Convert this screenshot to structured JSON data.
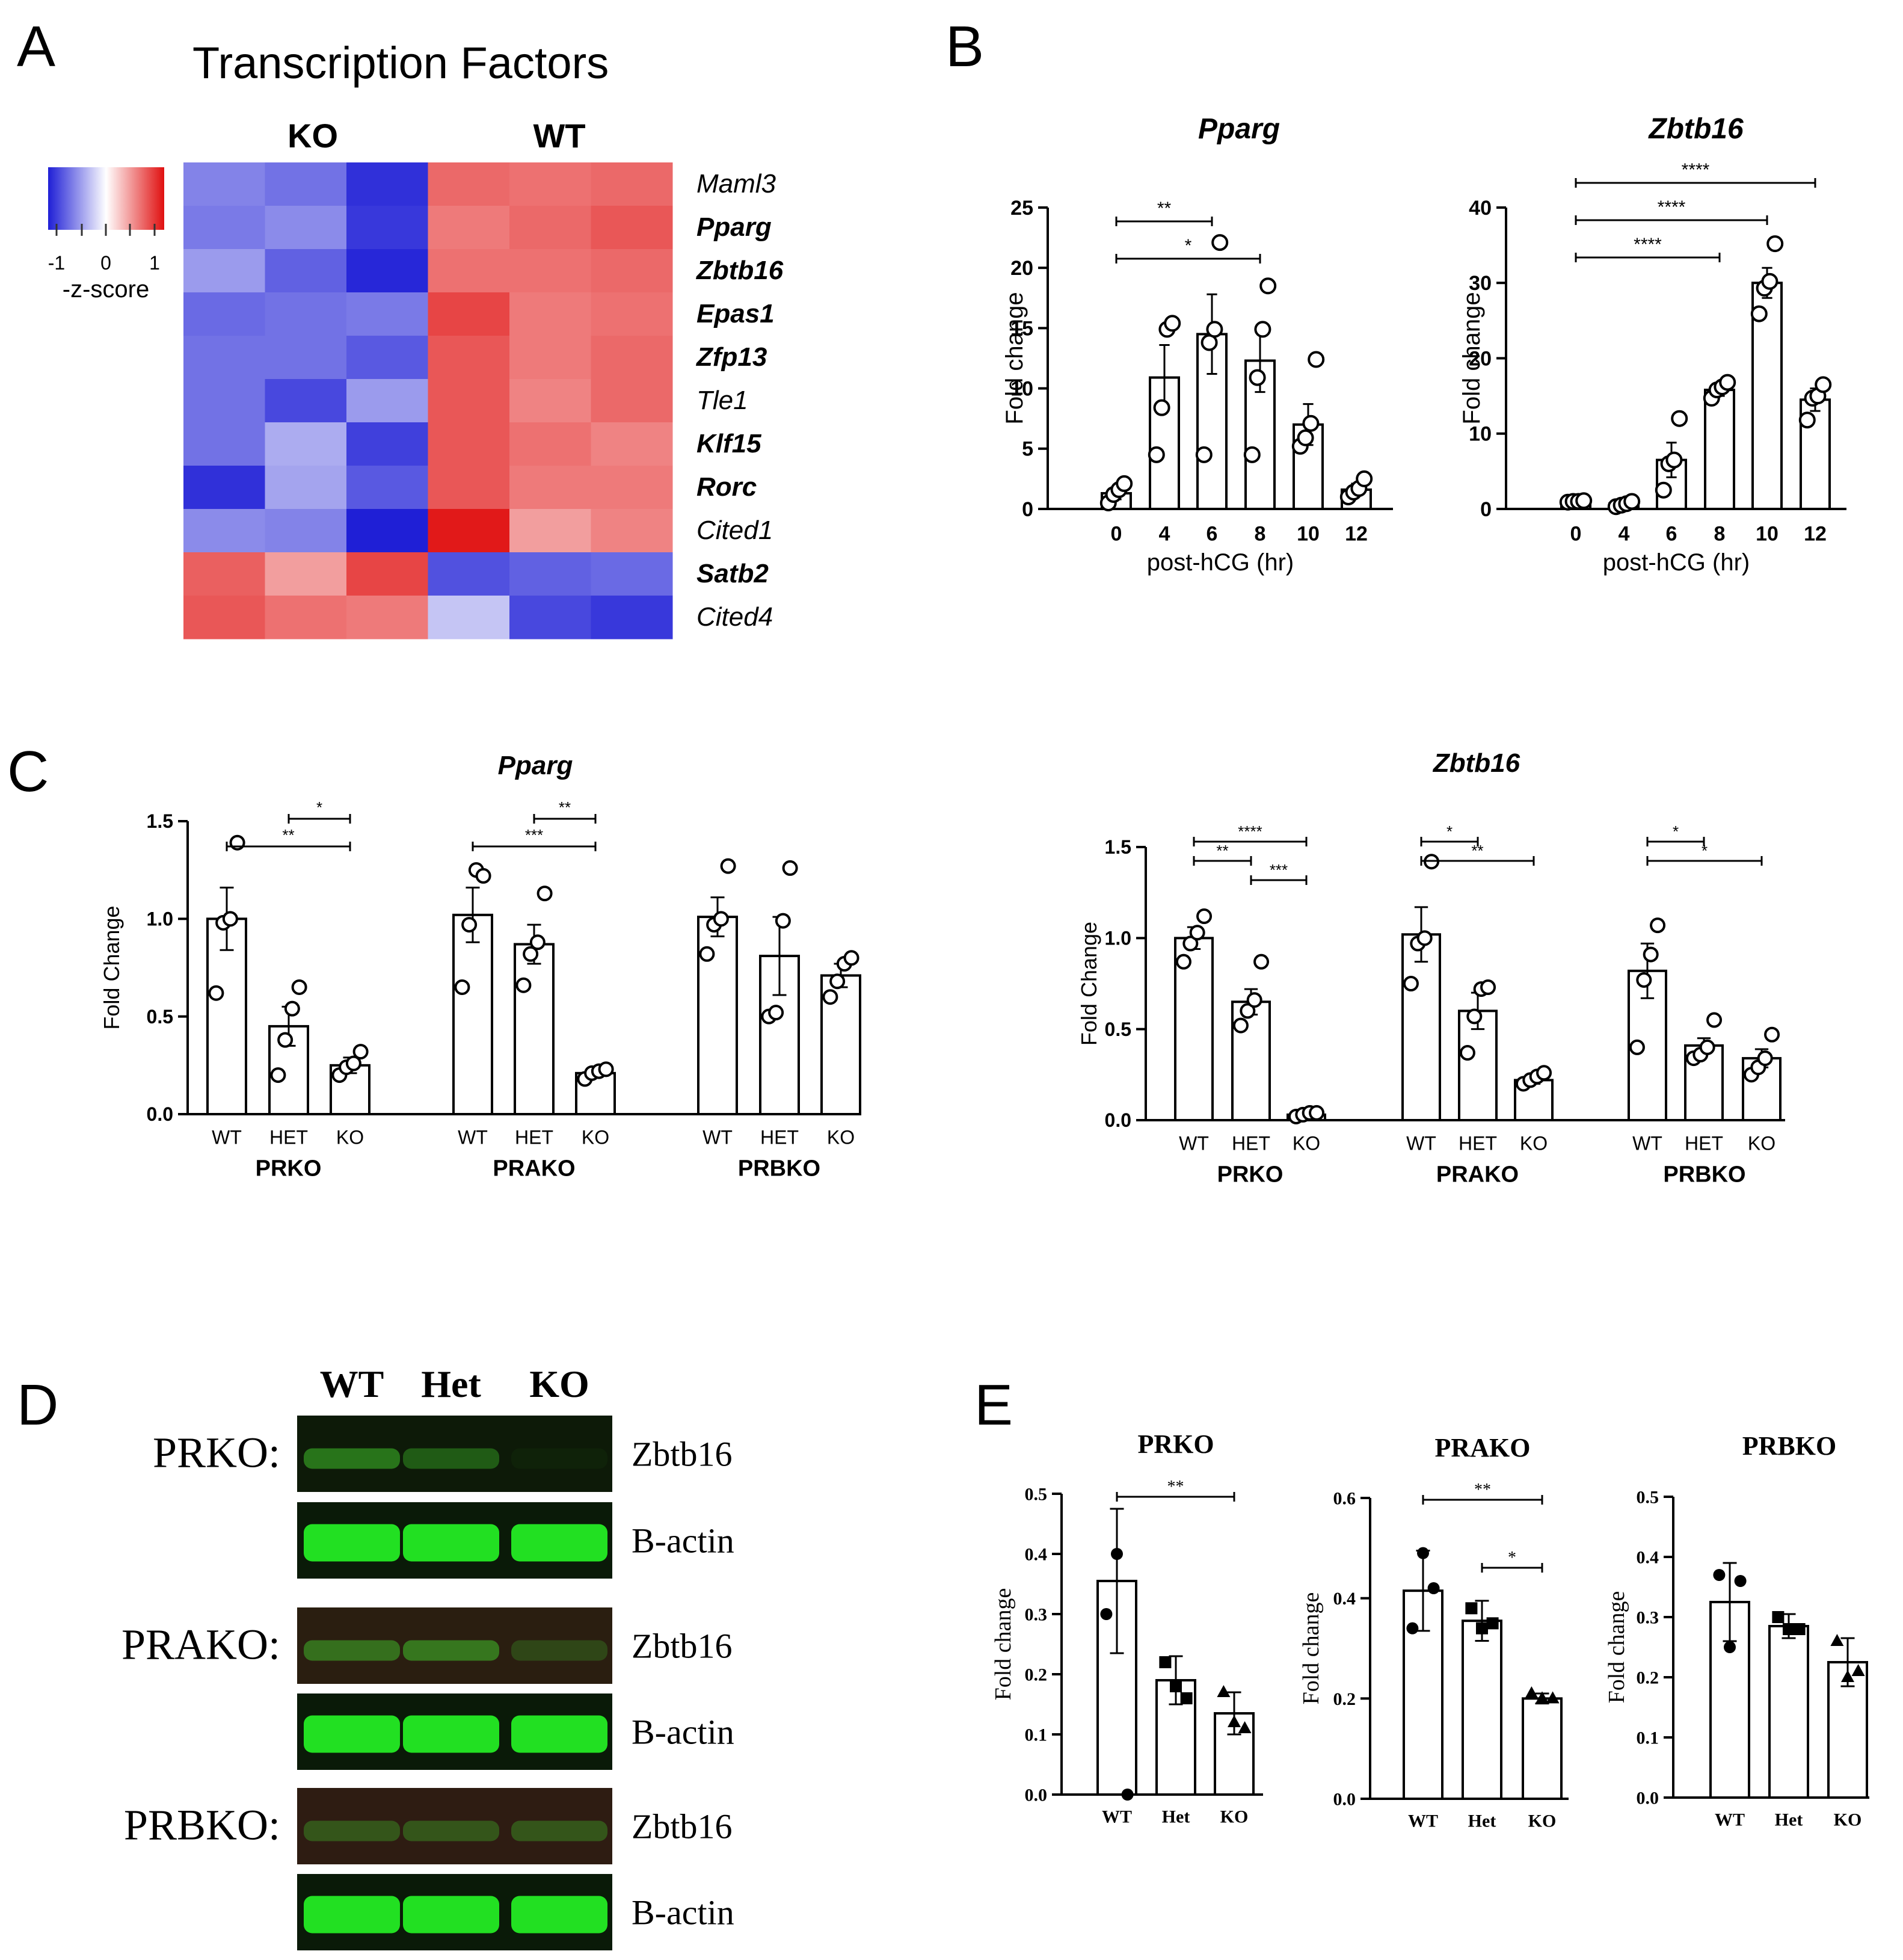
{
  "panel_labels": {
    "A": "A",
    "B": "B",
    "C": "C",
    "D": "D",
    "E": "E"
  },
  "heatmap": {
    "title": "Transcription Factors",
    "group_labels": [
      "KO",
      "WT"
    ],
    "legend": {
      "ticks": [
        "-1",
        "0",
        "1"
      ],
      "label": "-z-score",
      "low_color": "#1f1fd6",
      "mid_color": "#ffffff",
      "high_color": "#e01010"
    },
    "rows": [
      {
        "gene": "Maml3",
        "bold": false,
        "values": [
          -0.75,
          -0.85,
          -1.25,
          0.85,
          0.8,
          0.85
        ]
      },
      {
        "gene": "Pparg",
        "bold": true,
        "values": [
          -0.8,
          -0.7,
          -1.2,
          0.75,
          0.85,
          0.95
        ]
      },
      {
        "gene": "Zbtb16",
        "bold": true,
        "values": [
          -0.6,
          -0.95,
          -1.3,
          0.8,
          0.8,
          0.85
        ]
      },
      {
        "gene": "Epas1",
        "bold": true,
        "values": [
          -0.9,
          -0.85,
          -0.8,
          1.05,
          0.75,
          0.8
        ]
      },
      {
        "gene": "Zfp13",
        "bold": true,
        "values": [
          -0.85,
          -0.85,
          -1.0,
          0.95,
          0.75,
          0.85
        ]
      },
      {
        "gene": "Tle1",
        "bold": false,
        "values": [
          -0.85,
          -1.1,
          -0.6,
          0.95,
          0.7,
          0.85
        ]
      },
      {
        "gene": "Klf15",
        "bold": true,
        "values": [
          -0.85,
          -0.5,
          -1.15,
          0.95,
          0.8,
          0.7
        ]
      },
      {
        "gene": "Rorc",
        "bold": true,
        "values": [
          -1.25,
          -0.55,
          -1.0,
          0.95,
          0.75,
          0.75
        ]
      },
      {
        "gene": "Cited1",
        "bold": false,
        "values": [
          -0.7,
          -0.75,
          -1.35,
          1.3,
          0.55,
          0.7
        ]
      },
      {
        "gene": "Satb2",
        "bold": true,
        "values": [
          0.9,
          0.55,
          1.05,
          -1.05,
          -0.95,
          -0.9
        ]
      },
      {
        "gene": "Cited4",
        "bold": false,
        "values": [
          0.95,
          0.8,
          0.75,
          -0.35,
          -1.1,
          -1.2
        ]
      }
    ]
  },
  "chart_data": [
    {
      "panel": "B",
      "type": "bar",
      "title": "Pparg",
      "xlabel": "post-hCG (hr)",
      "ylabel": "Fold change",
      "categories": [
        "0",
        "4",
        "6",
        "8",
        "10",
        "12"
      ],
      "values": [
        1.3,
        10.9,
        14.5,
        12.3,
        7.0,
        1.6
      ],
      "errors": [
        0.5,
        2.7,
        3.3,
        2.6,
        1.7,
        0.5
      ],
      "points": [
        [
          0.5,
          1.2,
          1.6,
          2.1
        ],
        [
          4.5,
          8.4,
          14.9,
          15.4
        ],
        [
          4.5,
          13.8,
          14.9,
          22.1
        ],
        [
          4.5,
          10.9,
          14.9,
          18.5
        ],
        [
          5.2,
          5.9,
          7.1,
          12.4
        ],
        [
          1.0,
          1.4,
          1.7,
          2.5
        ]
      ],
      "ylim": [
        0,
        25
      ],
      "yticks": [
        0,
        5,
        10,
        15,
        20,
        25
      ],
      "significance": [
        {
          "from": 0,
          "to": 2,
          "label": "**"
        },
        {
          "from": 0,
          "to": 3,
          "label": "*"
        }
      ]
    },
    {
      "panel": "B",
      "type": "bar",
      "title": "Zbtb16",
      "xlabel": "post-hCG (hr)",
      "ylabel": "Fold change",
      "categories": [
        "0",
        "4",
        "6",
        "8",
        "10",
        "12"
      ],
      "values": [
        1.0,
        0.7,
        6.5,
        15.8,
        30.0,
        14.5
      ],
      "errors": [
        0.2,
        0.4,
        2.3,
        0.8,
        2.0,
        1.5
      ],
      "points": [
        [
          0.9,
          1.0,
          1.0,
          1.1
        ],
        [
          0.3,
          0.5,
          0.7,
          1.0
        ],
        [
          2.5,
          6.0,
          6.5,
          12.0
        ],
        [
          14.7,
          15.8,
          16.2,
          16.8
        ],
        [
          25.9,
          29.3,
          30.2,
          35.2
        ],
        [
          11.8,
          14.7,
          15.0,
          16.5
        ]
      ],
      "ylim": [
        0,
        40
      ],
      "yticks": [
        0,
        10,
        20,
        30,
        40
      ],
      "significance": [
        {
          "from": 0,
          "to": 3,
          "label": "****"
        },
        {
          "from": 0,
          "to": 4,
          "label": "****"
        },
        {
          "from": 0,
          "to": 5,
          "label": "****"
        }
      ]
    },
    {
      "panel": "C",
      "type": "bar",
      "title": "Pparg",
      "ylabel": "Fold Change",
      "groups": [
        "PRKO",
        "PRAKO",
        "PRBKO"
      ],
      "categories": [
        "WT",
        "HET",
        "KO"
      ],
      "values": [
        [
          1.0,
          0.45,
          0.25
        ],
        [
          1.02,
          0.87,
          0.21
        ],
        [
          1.01,
          0.81,
          0.71
        ]
      ],
      "errors": [
        [
          0.16,
          0.1,
          0.04
        ],
        [
          0.14,
          0.1,
          0.02
        ],
        [
          0.1,
          0.2,
          0.06
        ]
      ],
      "points": [
        [
          [
            0.62,
            0.98,
            1.0,
            1.39
          ],
          [
            0.2,
            0.38,
            0.54,
            0.65
          ],
          [
            0.2,
            0.24,
            0.26,
            0.32
          ]
        ],
        [
          [
            0.65,
            0.97,
            1.25,
            1.22
          ],
          [
            0.66,
            0.82,
            0.88,
            1.13
          ],
          [
            0.18,
            0.21,
            0.22,
            0.23
          ]
        ],
        [
          [
            0.82,
            0.97,
            1.0,
            1.27
          ],
          [
            0.5,
            0.52,
            0.99,
            1.26
          ],
          [
            0.6,
            0.68,
            0.77,
            0.8
          ]
        ]
      ],
      "ylim": [
        0,
        1.5
      ],
      "yticks": [
        "0.0",
        "0.5",
        "1.0",
        "1.5"
      ],
      "significance": [
        [
          {
            "from": 0,
            "to": 2,
            "label": "**"
          },
          {
            "from": 1,
            "to": 2,
            "label": "*"
          }
        ],
        [
          {
            "from": 0,
            "to": 2,
            "label": "***"
          },
          {
            "from": 1,
            "to": 2,
            "label": "**"
          }
        ],
        []
      ]
    },
    {
      "panel": "C",
      "type": "bar",
      "title": "Zbtb16",
      "ylabel": "Fold Change",
      "groups": [
        "PRKO",
        "PRAKO",
        "PRBKO"
      ],
      "categories": [
        "WT",
        "HET",
        "KO"
      ],
      "values": [
        [
          1.0,
          0.65,
          0.03
        ],
        [
          1.02,
          0.6,
          0.22
        ],
        [
          0.82,
          0.41,
          0.34
        ]
      ],
      "errors": [
        [
          0.06,
          0.07,
          0.005
        ],
        [
          0.15,
          0.1,
          0.02
        ],
        [
          0.15,
          0.04,
          0.05
        ]
      ],
      "points": [
        [
          [
            0.87,
            0.97,
            1.03,
            1.12
          ],
          [
            0.52,
            0.6,
            0.66,
            0.87
          ],
          [
            0.02,
            0.03,
            0.04,
            0.04
          ]
        ],
        [
          [
            0.75,
            0.97,
            1.0,
            1.42
          ],
          [
            0.37,
            0.57,
            0.72,
            0.73
          ],
          [
            0.2,
            0.22,
            0.24,
            0.26
          ]
        ],
        [
          [
            0.4,
            0.77,
            0.91,
            1.07
          ],
          [
            0.34,
            0.36,
            0.4,
            0.55
          ],
          [
            0.25,
            0.29,
            0.34,
            0.47
          ]
        ]
      ],
      "ylim": [
        0,
        1.5
      ],
      "yticks": [
        "0.0",
        "0.5",
        "1.0",
        "1.5"
      ],
      "significance": [
        [
          {
            "from": 0,
            "to": 2,
            "label": "****"
          },
          {
            "from": 0,
            "to": 1,
            "label": "**"
          },
          {
            "from": 1,
            "to": 2,
            "label": "***"
          }
        ],
        [
          {
            "from": 0,
            "to": 1,
            "label": "*"
          },
          {
            "from": 0,
            "to": 2,
            "label": "**"
          }
        ],
        [
          {
            "from": 0,
            "to": 1,
            "label": "*"
          },
          {
            "from": 0,
            "to": 2,
            "label": "*"
          }
        ]
      ]
    },
    {
      "panel": "E",
      "type": "bar",
      "title": "PRKO",
      "ylabel": "Fold change",
      "categories": [
        "WT",
        "Het",
        "KO"
      ],
      "values": [
        0.355,
        0.19,
        0.135
      ],
      "errors": [
        0.12,
        0.04,
        0.035
      ],
      "points": [
        [
          0.3,
          0.4,
          0.0
        ],
        [
          0.22,
          0.18,
          0.16
        ],
        [
          0.17,
          0.12,
          0.11
        ]
      ],
      "markers": [
        "circle",
        "square",
        "triangle"
      ],
      "ylim": [
        0,
        0.5
      ],
      "yticks": [
        "0.0",
        "0.1",
        "0.2",
        "0.3",
        "0.4",
        "0.5"
      ],
      "significance": [
        {
          "from": 0,
          "to": 2,
          "label": "**"
        }
      ]
    },
    {
      "panel": "E",
      "type": "bar",
      "title": "PRAKO",
      "ylabel": "Fold change",
      "categories": [
        "WT",
        "Het",
        "KO"
      ],
      "values": [
        0.415,
        0.355,
        0.2
      ],
      "errors": [
        0.08,
        0.04,
        0.01
      ],
      "points": [
        [
          0.34,
          0.49,
          0.42
        ],
        [
          0.38,
          0.34,
          0.35
        ],
        [
          0.21,
          0.2,
          0.2
        ]
      ],
      "markers": [
        "circle",
        "square",
        "triangle"
      ],
      "ylim": [
        0,
        0.6
      ],
      "yticks": [
        "0.0",
        "0.2",
        "0.4",
        "0.6"
      ],
      "significance": [
        {
          "from": 0,
          "to": 2,
          "label": "**"
        },
        {
          "from": 1,
          "to": 2,
          "label": "*"
        }
      ]
    },
    {
      "panel": "E",
      "type": "bar",
      "title": "PRBKO",
      "ylabel": "Fold change",
      "categories": [
        "WT",
        "Het",
        "KO"
      ],
      "values": [
        0.325,
        0.285,
        0.225
      ],
      "errors": [
        0.065,
        0.02,
        0.04
      ],
      "points": [
        [
          0.37,
          0.25,
          0.36
        ],
        [
          0.3,
          0.28,
          0.28
        ],
        [
          0.26,
          0.2,
          0.21
        ]
      ],
      "markers": [
        "circle",
        "square",
        "triangle"
      ],
      "ylim": [
        0,
        0.5
      ],
      "yticks": [
        "0.0",
        "0.1",
        "0.2",
        "0.3",
        "0.4",
        "0.5"
      ],
      "significance": []
    }
  ],
  "western_blot": {
    "lanes": [
      "WT",
      "Het",
      "KO"
    ],
    "rows": [
      {
        "group": "PRKO:",
        "label": "Zbtb16",
        "intensity": [
          0.55,
          0.4,
          0.05
        ],
        "background": "#0d1a08"
      },
      {
        "group": "",
        "label": "B-actin",
        "intensity": [
          1.0,
          1.0,
          1.0
        ],
        "background": "#0a1a08"
      },
      {
        "group": "PRAKO:",
        "label": "Zbtb16",
        "intensity": [
          0.5,
          0.55,
          0.25
        ],
        "background": "#2a1e10"
      },
      {
        "group": "",
        "label": "B-actin",
        "intensity": [
          1.0,
          1.0,
          1.0
        ],
        "background": "#0a1a08"
      },
      {
        "group": "PRBKO:",
        "label": "Zbtb16",
        "intensity": [
          0.35,
          0.35,
          0.35
        ],
        "background": "#2e1c12"
      },
      {
        "group": "",
        "label": "B-actin",
        "intensity": [
          1.0,
          1.0,
          1.0
        ],
        "background": "#0a1a08"
      }
    ]
  }
}
